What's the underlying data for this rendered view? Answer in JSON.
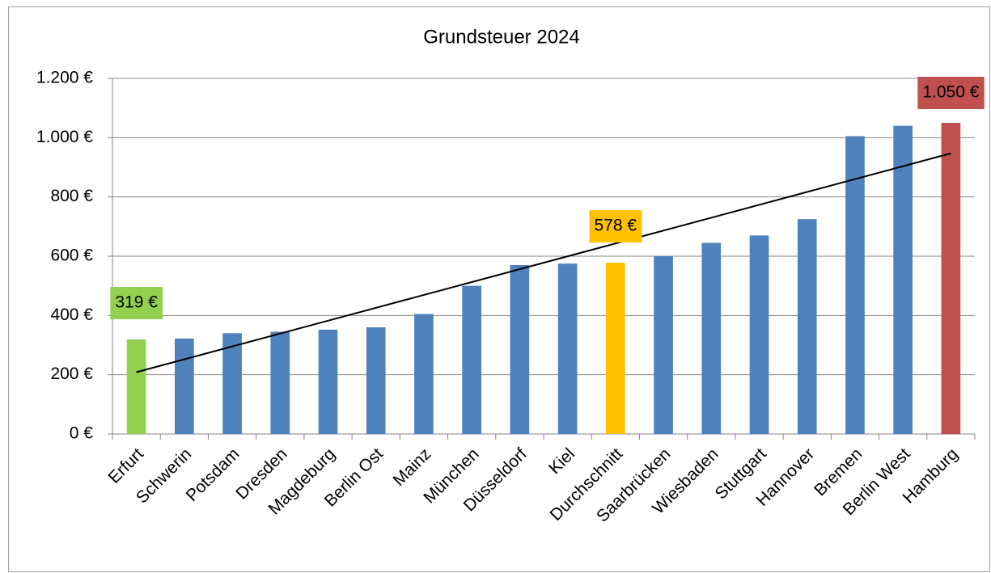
{
  "chart_data": {
    "type": "bar",
    "title": "Grundsteuer 2024",
    "categories": [
      "Erfurt",
      "Schwerin",
      "Potsdam",
      "Dresden",
      "Magdeburg",
      "Berlin Ost",
      "Mainz",
      "München",
      "Düsseldorf",
      "Kiel",
      "Durchschnitt",
      "Saarbrücken",
      "Wiesbaden",
      "Stuttgart",
      "Hannover",
      "Bremen",
      "Berlin West",
      "Hamburg"
    ],
    "values": [
      319,
      322,
      340,
      345,
      352,
      360,
      405,
      500,
      570,
      575,
      578,
      600,
      645,
      670,
      725,
      1005,
      1040,
      1050
    ],
    "value_labels": [
      "319 €",
      null,
      null,
      null,
      null,
      null,
      null,
      null,
      null,
      null,
      "578 €",
      null,
      null,
      null,
      null,
      null,
      null,
      "1.050 €"
    ],
    "colors": [
      "#92d050",
      "#4f81bd",
      "#4f81bd",
      "#4f81bd",
      "#4f81bd",
      "#4f81bd",
      "#4f81bd",
      "#4f81bd",
      "#4f81bd",
      "#4f81bd",
      "#ffc000",
      "#4f81bd",
      "#4f81bd",
      "#4f81bd",
      "#4f81bd",
      "#4f81bd",
      "#4f81bd",
      "#c0504d"
    ],
    "ylim": [
      0,
      1200
    ],
    "yticks": [
      {
        "value": 0,
        "label": "0 €"
      },
      {
        "value": 200,
        "label": "200 €"
      },
      {
        "value": 400,
        "label": "400 €"
      },
      {
        "value": 600,
        "label": "600 €"
      },
      {
        "value": 800,
        "label": "800 €"
      },
      {
        "value": 1000,
        "label": "1.000 €"
      },
      {
        "value": 1200,
        "label": "1.200 €"
      }
    ],
    "grid": true,
    "trendline": "linear"
  }
}
